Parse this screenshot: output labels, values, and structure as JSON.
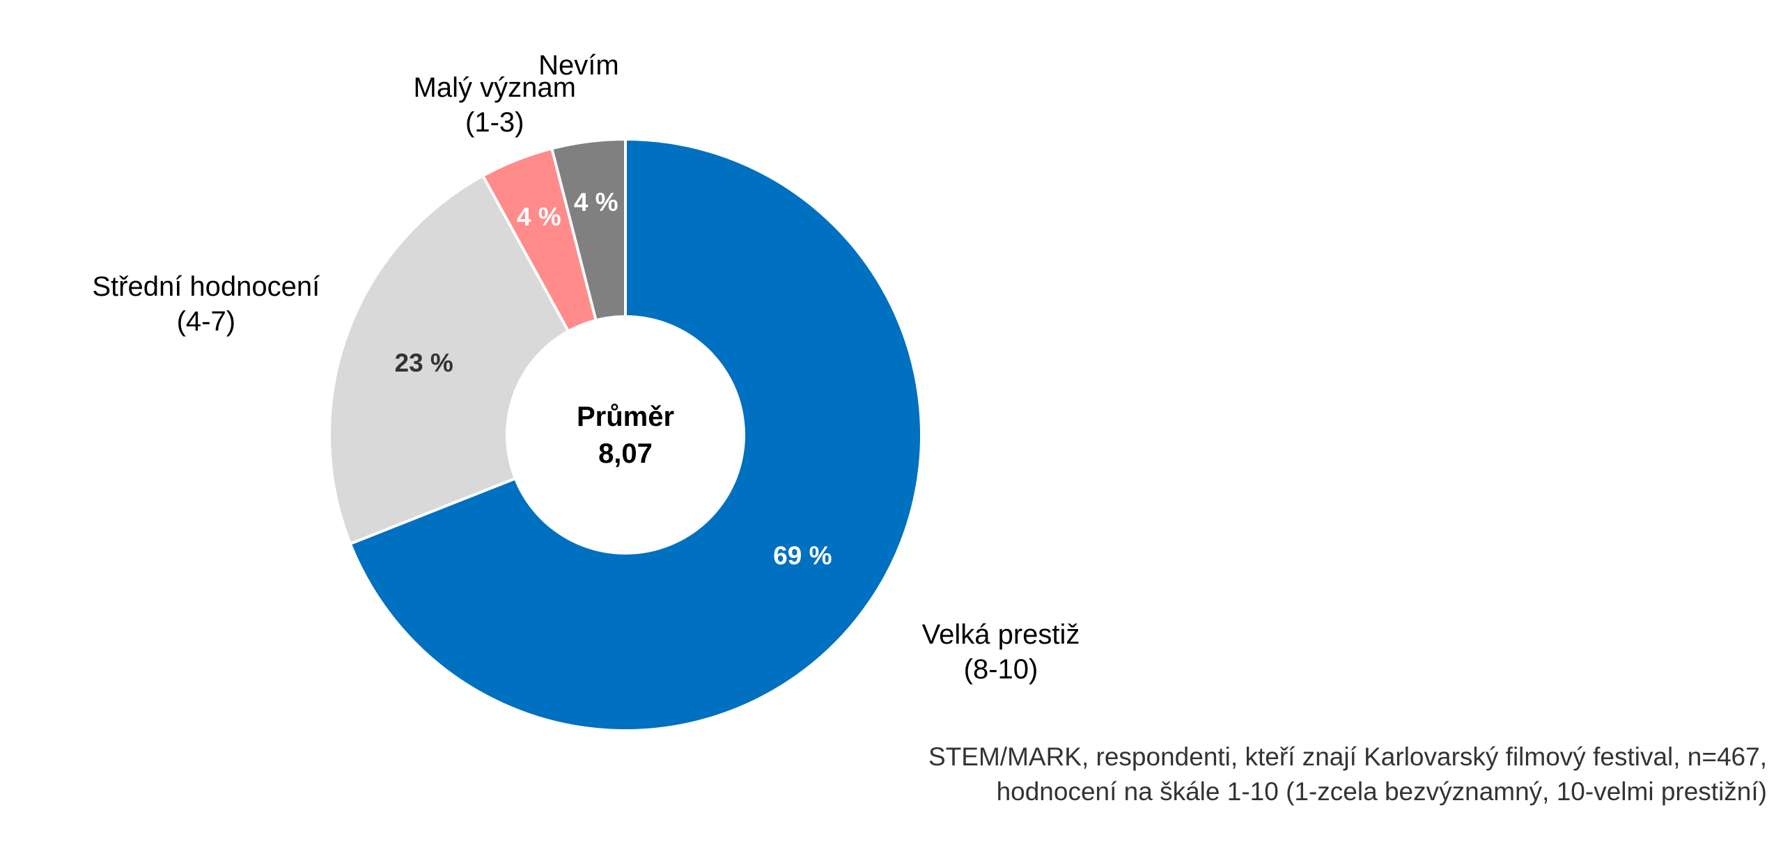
{
  "chart_data": {
    "type": "pie",
    "variant": "donut",
    "center_label": {
      "title": "Průměr",
      "value": "8,07"
    },
    "slices": [
      {
        "label": "Velká prestiž",
        "range": "(8-10)",
        "value": 69,
        "value_label": "69 %",
        "color": "#0070C0",
        "value_label_color": "#FFFFFF"
      },
      {
        "label": "Střední hodnocení",
        "range": "(4-7)",
        "value": 23,
        "value_label": "23 %",
        "color": "#D9D9D9",
        "value_label_color": "#333333"
      },
      {
        "label": "Malý význam",
        "range": "(1-3)",
        "value": 4,
        "value_label": "4 %",
        "color": "#FF8B8B",
        "value_label_color": "#FFFFFF"
      },
      {
        "label": "Nevím",
        "range": "",
        "value": 4,
        "value_label": "4 %",
        "color": "#808080",
        "value_label_color": "#FFFFFF"
      }
    ]
  },
  "footnote": {
    "line1": "STEM/MARK, respondenti, kteří znají Karlovarský filmový festival, n=467,",
    "line2": "hodnocení na škále 1-10 (1-zcela bezvýznamný, 10-velmi prestižní)"
  }
}
